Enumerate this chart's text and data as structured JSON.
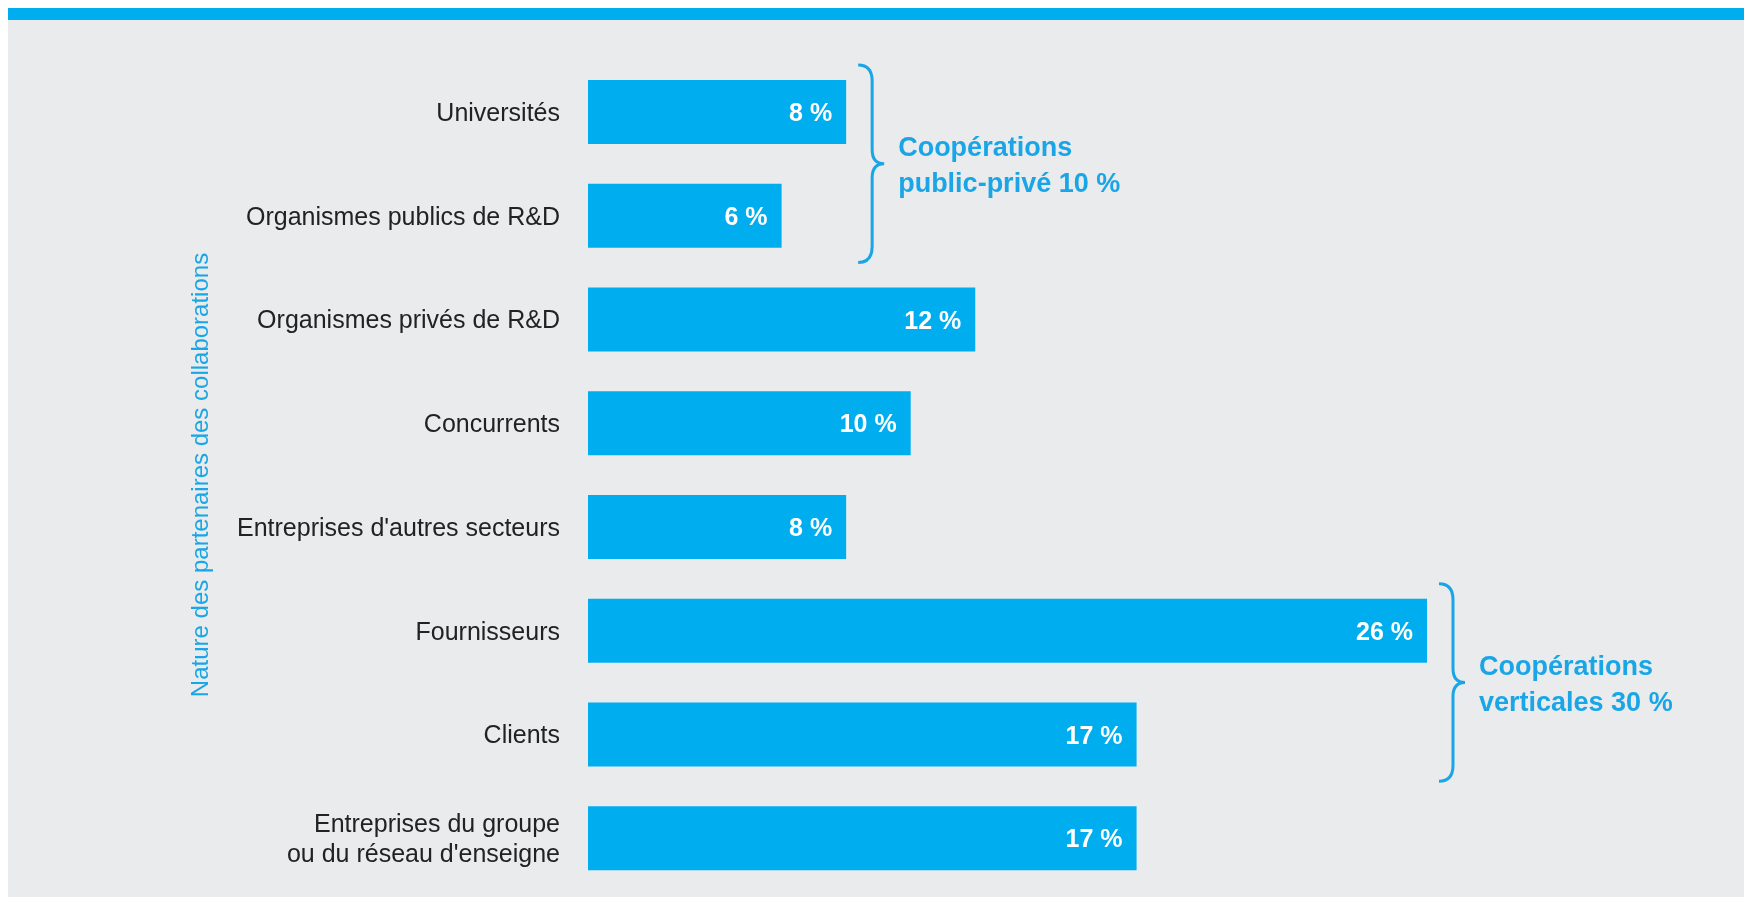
{
  "chart_data": {
    "type": "bar",
    "orientation": "horizontal",
    "ylabel": "Nature des partenaires des collaborations",
    "categories": [
      "Universités",
      "Organismes publics de R&D",
      "Organismes privés de R&D",
      "Concurrents",
      "Entreprises d'autres secteurs",
      "Fournisseurs",
      "Clients",
      "Entreprises du groupe ou du réseau d'enseigne"
    ],
    "values": [
      8,
      6,
      12,
      10,
      8,
      26,
      17,
      17
    ],
    "value_labels": [
      "8 %",
      "6 %",
      "12 %",
      "10 %",
      "8 %",
      "26 %",
      "17 %",
      "17 %"
    ],
    "color": "#00aeef",
    "annotations": [
      "Coopérations public-privé 10 %",
      "Coopérations verticales 30 %"
    ]
  }
}
